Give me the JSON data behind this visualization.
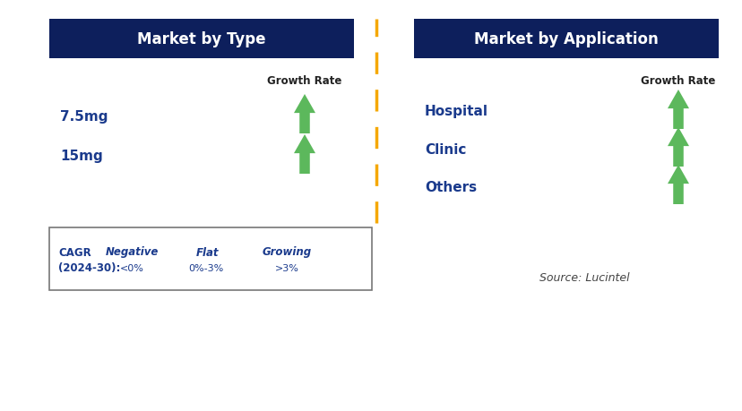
{
  "left_header": "Market by Type",
  "right_header": "Market by Application",
  "left_items": [
    "7.5mg",
    "15mg"
  ],
  "right_items": [
    "Hospital",
    "Clinic",
    "Others"
  ],
  "header_bg": "#0d1f5c",
  "header_fg": "#ffffff",
  "item_color": "#1a3a8c",
  "growth_label": "Growth Rate",
  "growth_label_color": "#222222",
  "arrow_up_color": "#5cb85c",
  "arrow_down_color": "#cc0000",
  "arrow_flat_color": "#f5a800",
  "dashed_line_color": "#f5a800",
  "legend_text_color": "#1a3a8c",
  "source_text": "Source: Lucintel",
  "source_color": "#444444",
  "background_color": "#ffffff",
  "fig_w": 8.29,
  "fig_h": 4.6,
  "dpi": 100
}
